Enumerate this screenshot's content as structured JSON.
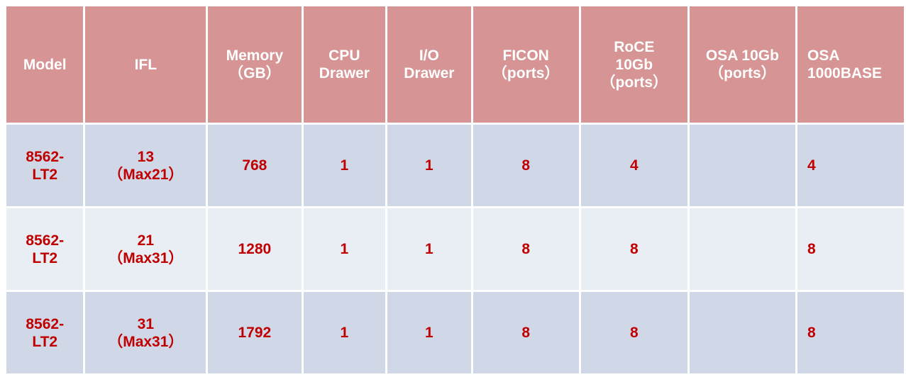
{
  "colors": {
    "header_bg": "#D69494",
    "row_odd": "#D0D8E8",
    "row_even": "#E9EDF4",
    "text": "#C00000",
    "header_text": "#FFFFFF"
  },
  "headers": [
    [
      "Model"
    ],
    [
      "IFL"
    ],
    [
      "Memory",
      "（GB）"
    ],
    [
      "CPU",
      "Drawer"
    ],
    [
      "I/O",
      "Drawer"
    ],
    [
      "FICON",
      "（ports）"
    ],
    [
      "RoCE",
      "10Gb",
      "（ports）"
    ],
    [
      "OSA 10Gb",
      "（ports）"
    ],
    [
      "OSA",
      "1000BASE"
    ]
  ],
  "rows": [
    {
      "model": [
        "8562-",
        "LT2"
      ],
      "ifl": [
        "13",
        "（Max21）"
      ],
      "memory": "768",
      "cpu": "1",
      "io": "1",
      "ficon": "8",
      "roce": "4",
      "osa10": "",
      "osa1000": "4"
    },
    {
      "model": [
        "8562-",
        "LT2"
      ],
      "ifl": [
        "21",
        "（Max31）"
      ],
      "memory": "1280",
      "cpu": "1",
      "io": "1",
      "ficon": "8",
      "roce": "8",
      "osa10": "",
      "osa1000": "8"
    },
    {
      "model": [
        "8562-",
        "LT2"
      ],
      "ifl": [
        "31",
        "（Max31）"
      ],
      "memory": "1792",
      "cpu": "1",
      "io": "1",
      "ficon": "8",
      "roce": "8",
      "osa10": "",
      "osa1000": "8"
    }
  ]
}
